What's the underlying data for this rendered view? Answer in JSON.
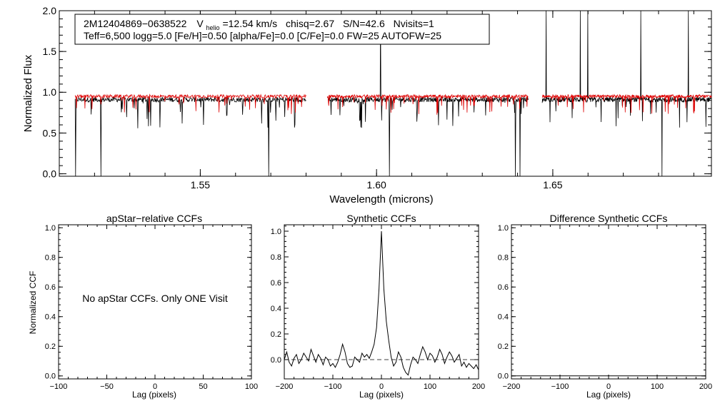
{
  "chart_data": [
    {
      "type": "line",
      "title": "",
      "xlabel": "Wavelength (microns)",
      "ylabel": "Normalized Flux",
      "xlim": [
        1.51,
        1.695
      ],
      "ylim": [
        -0.03,
        2.0
      ],
      "xticks": [
        1.55,
        1.6,
        1.65
      ],
      "xtick_labels": [
        "1.55",
        "1.60",
        "1.65"
      ],
      "yticks": [
        0.0,
        0.5,
        1.0,
        1.5,
        2.0
      ],
      "ytick_labels": [
        "0.0",
        "0.5",
        "1.0",
        "1.5",
        "2.0"
      ],
      "annotation_line1": {
        "id": "2M12404869−0638522",
        "vhelio_prefix": "V",
        "vhelio_sub": "helio",
        "vhelio_value": "=12.54 km/s",
        "chisq": "chisq=2.67",
        "sn": "S/N=42.6",
        "nvisits": "Nvisits=1"
      },
      "annotation_line2": "Teff=6,500 logg=5.0 [Fe/H]=0.50 [alpha/Fe]=0.0 [C/Fe]=0.0 FW=25 AUTOFW=25",
      "chips": [
        [
          1.5145,
          1.58
        ],
        [
          1.586,
          1.643
        ],
        [
          1.647,
          1.695
        ]
      ],
      "series": [
        {
          "name": "observed",
          "color": "#000000",
          "continuum": 0.91,
          "noise": 0.03
        },
        {
          "name": "synthetic",
          "color": "#dd0000",
          "continuum": 0.95,
          "noise": 0.02
        }
      ]
    },
    {
      "type": "line",
      "title": "apStar−relative CCFs",
      "xlabel": "Lag (pixels)",
      "ylabel": "Normalized CCF",
      "xlim": [
        -100,
        100
      ],
      "ylim": [
        -0.02,
        1.02
      ],
      "xticks": [
        -100,
        -50,
        0,
        50,
        100
      ],
      "xtick_labels": [
        "−100",
        "−50",
        "0",
        "50",
        "100"
      ],
      "yticks": [
        0.0,
        0.2,
        0.4,
        0.6,
        0.8,
        1.0
      ],
      "ytick_labels": [
        "0.0",
        "0.2",
        "0.4",
        "0.6",
        "0.8",
        "1.0"
      ],
      "message": "No apStar CCFs.  Only ONE Visit",
      "series": []
    },
    {
      "type": "line",
      "title": "Synthetic CCFs",
      "xlabel": "Lag (pixels)",
      "ylabel": "",
      "xlim": [
        -200,
        200
      ],
      "ylim": [
        -0.15,
        1.05
      ],
      "xticks": [
        -200,
        -100,
        0,
        100,
        200
      ],
      "xtick_labels": [
        "−200",
        "−100",
        "0",
        "100",
        "200"
      ],
      "yticks": [
        0.0,
        0.2,
        0.4,
        0.6,
        0.8,
        1.0
      ],
      "ytick_labels": [
        "0.0",
        "0.2",
        "0.4",
        "0.6",
        "0.8",
        "1.0"
      ],
      "zero_line": true,
      "series": [
        {
          "name": "synthetic-ccf",
          "x": [
            -200,
            -195,
            -190,
            -185,
            -180,
            -175,
            -170,
            -165,
            -160,
            -155,
            -150,
            -145,
            -140,
            -135,
            -130,
            -125,
            -120,
            -115,
            -110,
            -105,
            -100,
            -95,
            -90,
            -85,
            -80,
            -75,
            -70,
            -65,
            -60,
            -55,
            -50,
            -45,
            -40,
            -35,
            -30,
            -25,
            -20,
            -15,
            -10,
            -5,
            0,
            5,
            10,
            15,
            20,
            25,
            30,
            35,
            40,
            45,
            50,
            55,
            60,
            65,
            70,
            75,
            80,
            85,
            90,
            95,
            100,
            105,
            110,
            115,
            120,
            125,
            130,
            135,
            140,
            145,
            150,
            155,
            160,
            165,
            170,
            175,
            180,
            185,
            190,
            195,
            200
          ],
          "values": [
            0.0,
            0.06,
            -0.02,
            -0.05,
            0.01,
            0.04,
            -0.03,
            0.0,
            0.05,
            0.02,
            -0.01,
            0.08,
            0.03,
            -0.02,
            0.04,
            0.01,
            -0.04,
            0.02,
            0.0,
            -0.05,
            -0.03,
            -0.06,
            -0.02,
            0.04,
            0.12,
            0.06,
            -0.03,
            -0.06,
            -0.05,
            0.02,
            0.0,
            -0.02,
            0.05,
            0.02,
            0.04,
            0.01,
            0.06,
            0.12,
            0.25,
            0.55,
            1.0,
            0.55,
            0.3,
            0.15,
            0.02,
            -0.05,
            -0.02,
            0.06,
            0.02,
            -0.06,
            -0.1,
            -0.12,
            -0.04,
            0.02,
            0.0,
            -0.03,
            0.04,
            0.1,
            0.06,
            0.0,
            0.05,
            0.03,
            -0.02,
            0.02,
            0.08,
            0.04,
            -0.03,
            0.02,
            0.06,
            0.03,
            -0.02,
            0.01,
            0.04,
            -0.05,
            -0.02,
            -0.06,
            -0.03,
            -0.05,
            -0.07,
            -0.04,
            -0.08
          ]
        }
      ]
    },
    {
      "type": "line",
      "title": "Difference Synthetic CCFs",
      "xlabel": "Lag (pixels)",
      "ylabel": "",
      "xlim": [
        -200,
        200
      ],
      "ylim": [
        -0.02,
        1.02
      ],
      "xticks": [
        -200,
        -100,
        0,
        100,
        200
      ],
      "xtick_labels": [
        "−200",
        "−100",
        "0",
        "100",
        "200"
      ],
      "yticks": [
        0.0,
        0.2,
        0.4,
        0.6,
        0.8,
        1.0
      ],
      "ytick_labels": [
        "0.0",
        "0.2",
        "0.4",
        "0.6",
        "0.8",
        "1.0"
      ],
      "series": [
        {
          "name": "difference-ccf",
          "x": [
            -200,
            200
          ],
          "values": [
            0.0,
            0.0
          ]
        }
      ]
    }
  ]
}
